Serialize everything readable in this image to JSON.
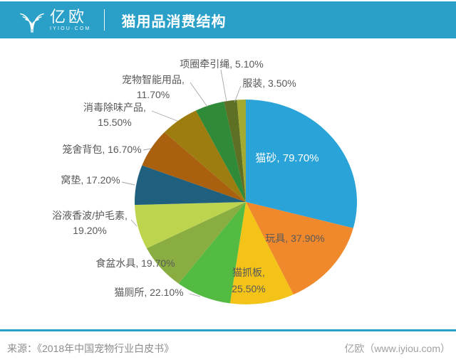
{
  "header": {
    "logo_text": "亿欧",
    "logo_subtext": "IYIOU·COM",
    "title": "猫用品消费结构",
    "bar_color": "#2aa0c8"
  },
  "footer": {
    "source": "来源：《2018年中国宠物行业白皮书》",
    "credit": "亿欧（www.iyiou.com）"
  },
  "chart_data": {
    "type": "pie",
    "title": "猫用品消费结构",
    "value_unit": "%",
    "note": "multi-select survey percentages; slice angles proportional to value/sum",
    "legend_position": "none",
    "slices": [
      {
        "id": "cat-litter",
        "name": "猫砂",
        "value": 79.7,
        "color": "#29a3d8",
        "label_lines": [
          "猫砂, 79.70%"
        ],
        "label_color": "#ffffff"
      },
      {
        "id": "toys",
        "name": "玩具",
        "value": 37.9,
        "color": "#f0882c",
        "label_lines": [
          "玩具, 37.90%"
        ],
        "label_color": "#595959"
      },
      {
        "id": "scratching-board",
        "name": "猫抓板",
        "value": 25.5,
        "color": "#f3c317",
        "label_lines": [
          "猫抓板,",
          "25.50%"
        ],
        "label_color": "#595959"
      },
      {
        "id": "cat-toilet",
        "name": "猫厕所",
        "value": 22.1,
        "color": "#53bb42",
        "label_lines": [
          "猫厕所, 22.10%"
        ],
        "label_color": "#595959"
      },
      {
        "id": "food-water-bowls",
        "name": "食盆水具",
        "value": 19.7,
        "color": "#89ad41",
        "label_lines": [
          "食盆水具, 19.70%"
        ],
        "label_color": "#595959"
      },
      {
        "id": "shampoo-conditioner",
        "name": "浴液香波/护毛素",
        "value": 19.2,
        "color": "#bdd44f",
        "label_lines": [
          "浴液香波/护毛素,",
          "19.20%"
        ],
        "label_color": "#595959"
      },
      {
        "id": "bedding-mats",
        "name": "窝垫",
        "value": 17.2,
        "color": "#20607f",
        "label_lines": [
          "窝垫, 17.20%"
        ],
        "label_color": "#595959"
      },
      {
        "id": "cages-carriers",
        "name": "笼舍背包",
        "value": 16.7,
        "color": "#a96110",
        "label_lines": [
          "笼舍背包, 16.70%"
        ],
        "label_color": "#595959"
      },
      {
        "id": "deodorizing-products",
        "name": "消毒除味产品",
        "value": 15.5,
        "color": "#9d7c10",
        "label_lines": [
          "消毒除味产品,",
          "15.50%"
        ],
        "label_color": "#595959"
      },
      {
        "id": "smart-pet-products",
        "name": "宠物智能用品",
        "value": 11.7,
        "color": "#2f8b37",
        "label_lines": [
          "宠物智能用品,",
          "11.70%"
        ],
        "label_color": "#595959"
      },
      {
        "id": "collar-leash",
        "name": "项圈牵引绳",
        "value": 5.1,
        "color": "#5e7024",
        "label_lines": [
          "项圈牵引绳, 5.10%"
        ],
        "label_color": "#595959"
      },
      {
        "id": "clothing",
        "name": "服装",
        "value": 3.5,
        "color": "#a2aa31",
        "label_lines": [
          "服装, 3.50%"
        ],
        "label_color": "#595959"
      }
    ]
  }
}
